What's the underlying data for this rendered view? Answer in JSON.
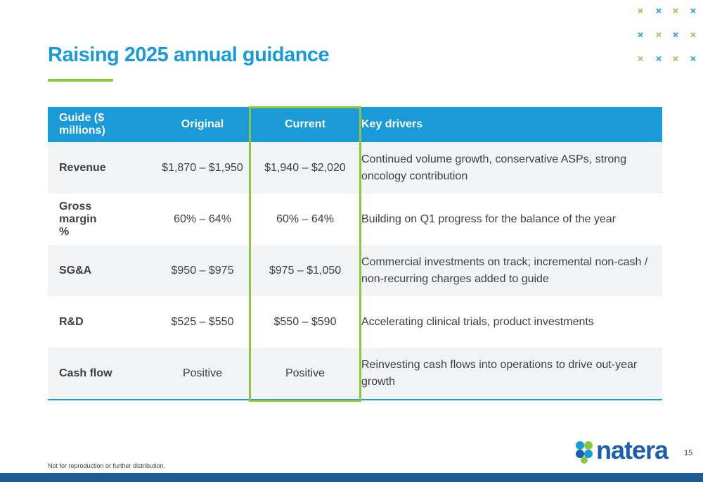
{
  "slide": {
    "title": "Raising 2025 annual guidance",
    "footer_note": "Not for reproduction or further distribution.",
    "page_number": "15",
    "logo_text": "natera"
  },
  "table": {
    "headers": [
      "Guide ($ millions)",
      "Original",
      "Current",
      "Key drivers"
    ],
    "rows": [
      {
        "label": "Revenue",
        "original": "$1,870 – $1,950",
        "current": "$1,940 – $2,020",
        "drivers": "Continued volume growth, conservative ASPs, strong oncology contribution"
      },
      {
        "label": "Gross margin %",
        "original": "60% – 64%",
        "current": "60% – 64%",
        "drivers": "Building on Q1 progress for the balance of the year"
      },
      {
        "label": "SG&A",
        "original": "$950 – $975",
        "current": "$975 – $1,050",
        "drivers": "Commercial investments on track; incremental non-cash / non-recurring charges added to guide"
      },
      {
        "label": "R&D",
        "original": "$525 – $550",
        "current": "$550 – $590",
        "drivers": "Accelerating clinical trials, product investments"
      },
      {
        "label": "Cash flow",
        "original": "Positive",
        "current": "Positive",
        "drivers": "Reinvesting cash flows into operations to drive out-year growth"
      }
    ]
  },
  "decor": {
    "mark_glyph": "×",
    "colors": {
      "accent_blue": "#1a9ad6",
      "accent_green": "#8dc63f",
      "brand_navy": "#1f5c94"
    }
  }
}
